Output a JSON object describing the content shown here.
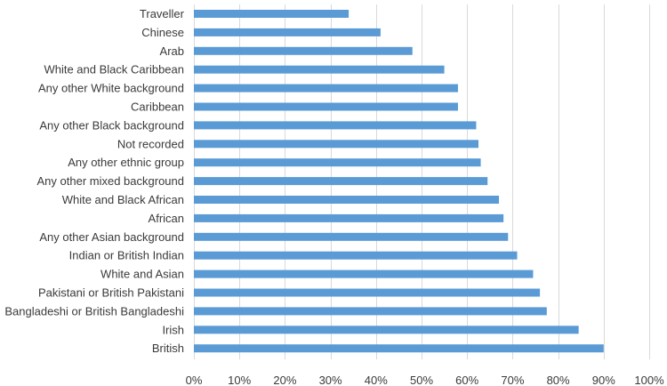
{
  "chart_data": {
    "type": "bar",
    "orientation": "horizontal",
    "title": "",
    "xlabel": "",
    "ylabel": "",
    "categories": [
      "Traveller",
      "Chinese",
      "Arab",
      "White and Black Caribbean",
      "Any other White background",
      "Caribbean",
      "Any other Black background",
      "Not recorded",
      "Any other ethnic group",
      "Any other mixed background",
      "White and Black African",
      "African",
      "Any other Asian background",
      "Indian or British Indian",
      "White and Asian",
      "Pakistani or British Pakistani",
      "Bangladeshi or British Bangladeshi",
      "Irish",
      "British"
    ],
    "values": [
      34,
      41,
      48,
      55,
      58,
      58,
      62,
      62.5,
      63,
      64.5,
      67,
      68,
      69,
      71,
      74.5,
      76,
      77.5,
      84.5,
      90
    ],
    "xlim": [
      0,
      100
    ],
    "x_ticks": [
      0,
      10,
      20,
      30,
      40,
      50,
      60,
      70,
      80,
      90,
      100
    ],
    "x_tick_labels": [
      "0%",
      "10%",
      "20%",
      "30%",
      "40%",
      "50%",
      "60%",
      "70%",
      "80%",
      "90%",
      "100%"
    ],
    "grid": true,
    "bar_color": "#5b9bd5",
    "grid_color": "#d9d9d9",
    "text_color": "#3a3a3a",
    "legend": "none"
  }
}
